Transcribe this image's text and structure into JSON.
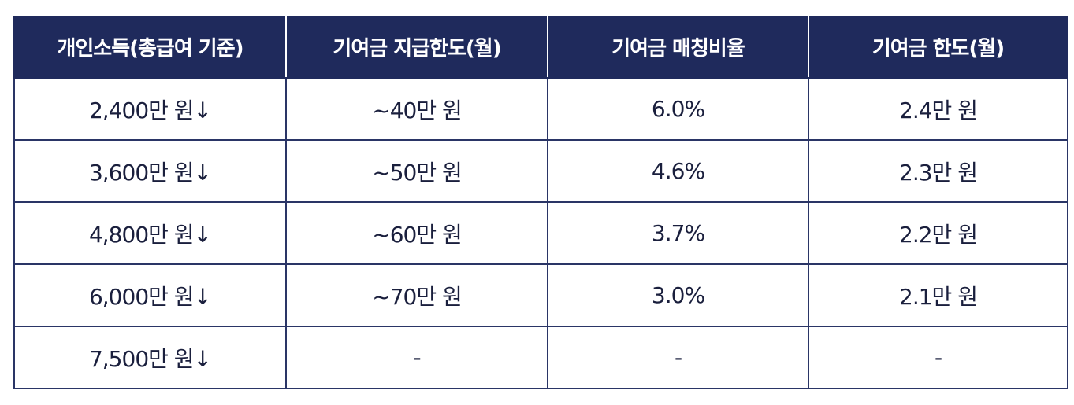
{
  "table": {
    "headers": [
      "개인소득(총급여 기준)",
      "기여금 지급한도(월)",
      "기여금 매칭비율",
      "기여금 한도(월)"
    ],
    "rows": [
      [
        "2,400만 원↓",
        "~40만 원",
        "6.0%",
        "2.4만 원"
      ],
      [
        "3,600만 원↓",
        "~50만 원",
        "4.6%",
        "2.3만 원"
      ],
      [
        "4,800만 원↓",
        "~60만 원",
        "3.7%",
        "2.2만 원"
      ],
      [
        "6,000만 원↓",
        "~70만 원",
        "3.0%",
        "2.1만 원"
      ],
      [
        "7,500만 원↓",
        "-",
        "-",
        "-"
      ]
    ]
  },
  "colors": {
    "header_bg": "#1f2a5c",
    "header_text": "#ffffff",
    "border": "#2a3566",
    "cell_text": "#1a1f3d"
  }
}
